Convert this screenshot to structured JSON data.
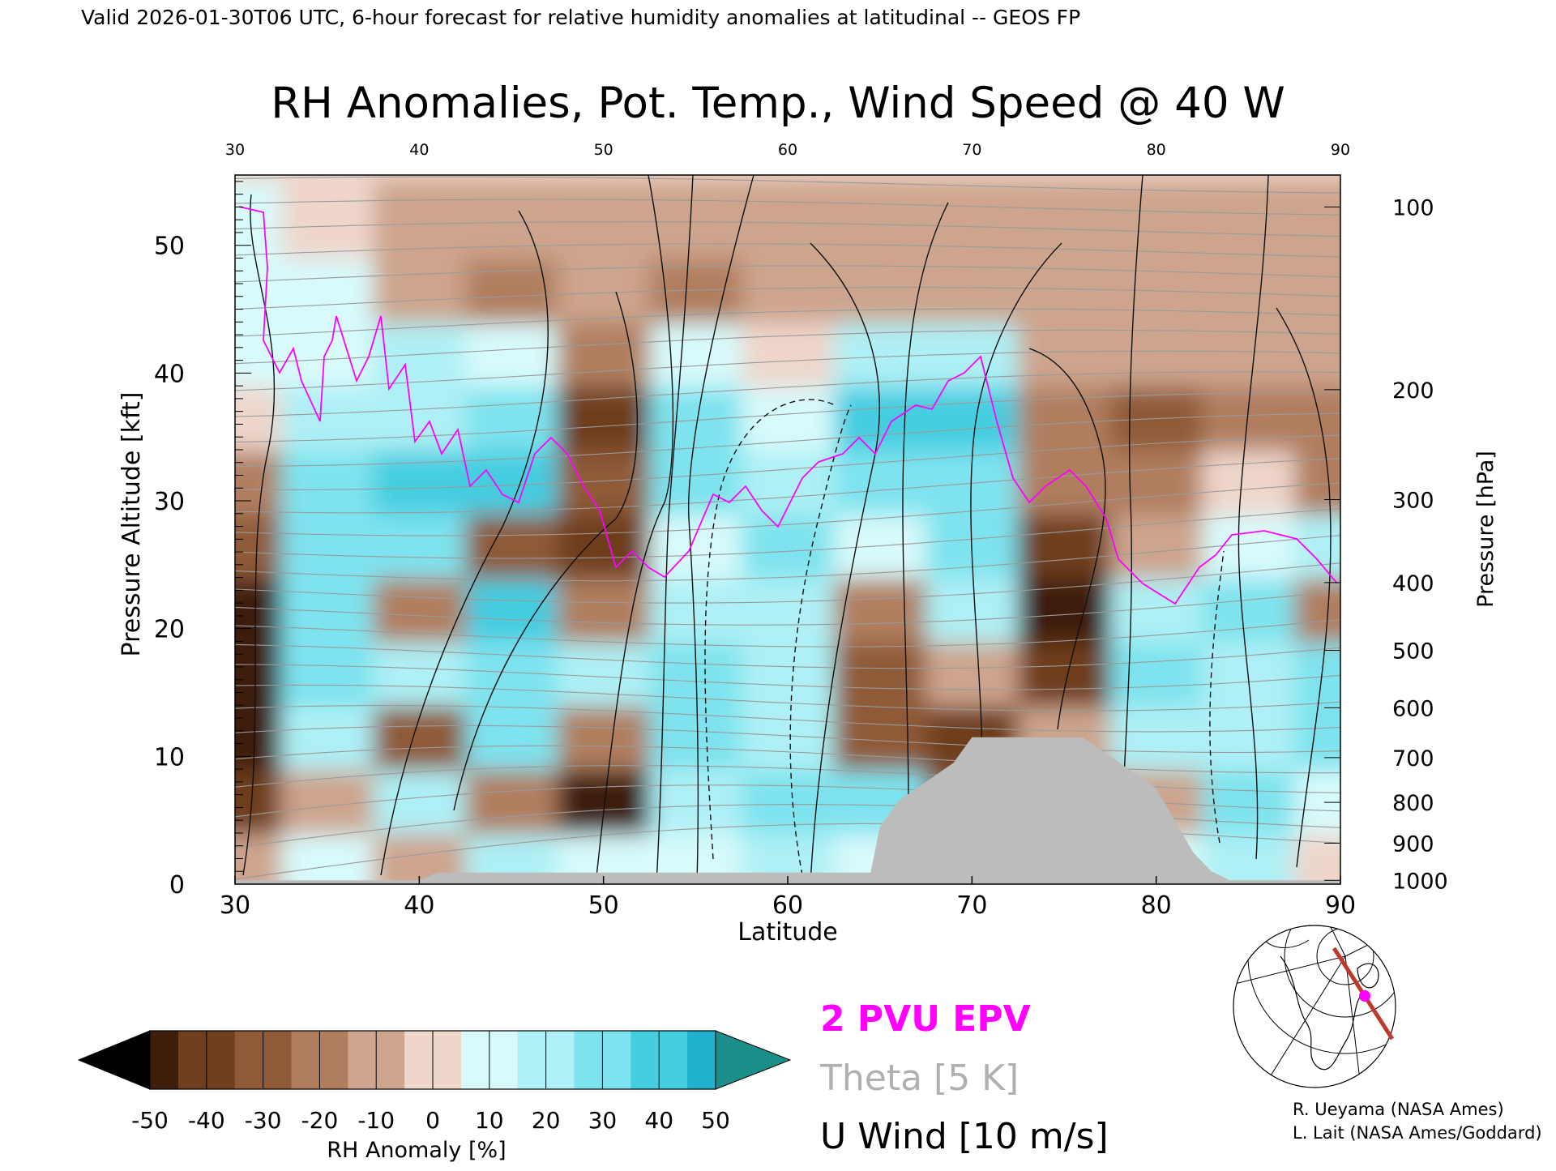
{
  "header": {
    "valid_line": "Valid 2026-01-30T06 UTC, 6-hour forecast for relative humidity anomalies at latitudinal -- GEOS FP"
  },
  "chart_data": {
    "type": "heatmap",
    "title": "RH Anomalies, Pot. Temp., Wind Speed @ 40 W",
    "xlabel": "Latitude",
    "ylabel_left": "Pressure Altitude [kft]",
    "ylabel_right": "Pressure [hPa]",
    "xlim": [
      30,
      90
    ],
    "ylim_kft": [
      0,
      55.5
    ],
    "x_ticks": [
      "30",
      "40",
      "50",
      "60",
      "70",
      "80",
      "90"
    ],
    "x_tick_values": [
      30,
      40,
      50,
      60,
      70,
      80,
      90
    ],
    "y_ticks_left": [
      "0",
      "10",
      "20",
      "30",
      "40",
      "50"
    ],
    "y_tick_values_left": [
      0,
      10,
      20,
      30,
      40,
      50
    ],
    "y_ticks_right": [
      {
        "label": "100",
        "kft": 53.0
      },
      {
        "label": "200",
        "kft": 38.7
      },
      {
        "label": "300",
        "kft": 30.1
      },
      {
        "label": "400",
        "kft": 23.6
      },
      {
        "label": "500",
        "kft": 18.3
      },
      {
        "label": "600",
        "kft": 13.8
      },
      {
        "label": "700",
        "kft": 9.9
      },
      {
        "label": "800",
        "kft": 6.4
      },
      {
        "label": "900",
        "kft": 3.2
      },
      {
        "label": "1000",
        "kft": 0.3
      }
    ],
    "rh_anomaly_grid": {
      "lat": [
        30,
        35,
        40,
        45,
        50,
        55,
        60,
        65,
        70,
        75,
        80,
        85,
        90
      ],
      "kft": [
        2,
        7,
        12,
        17,
        22,
        27,
        32,
        37,
        42,
        47,
        52
      ],
      "values_pct": [
        [
          -10,
          15,
          -10,
          20,
          10,
          15,
          25,
          15,
          20,
          0,
          15,
          25,
          0
        ],
        [
          -40,
          -10,
          25,
          -20,
          -45,
          20,
          35,
          30,
          -30,
          -20,
          -10,
          30,
          10
        ],
        [
          -45,
          25,
          -30,
          30,
          -15,
          30,
          25,
          -30,
          -35,
          -10,
          20,
          25,
          30
        ],
        [
          -50,
          35,
          20,
          35,
          20,
          35,
          20,
          -25,
          -10,
          -40,
          30,
          25,
          35
        ],
        [
          -45,
          30,
          -20,
          40,
          -20,
          20,
          25,
          -15,
          25,
          -45,
          25,
          30,
          -15
        ],
        [
          -30,
          35,
          35,
          -25,
          -35,
          15,
          30,
          10,
          35,
          -40,
          -10,
          10,
          20
        ],
        [
          -15,
          30,
          40,
          40,
          -30,
          30,
          25,
          30,
          30,
          -20,
          -20,
          5,
          -20
        ],
        [
          5,
          25,
          20,
          35,
          -35,
          30,
          15,
          40,
          45,
          -20,
          -25,
          -15,
          -15
        ],
        [
          10,
          15,
          20,
          10,
          -15,
          10,
          5,
          20,
          25,
          -5,
          -10,
          -10,
          -10
        ],
        [
          10,
          10,
          -10,
          -15,
          -5,
          -15,
          -10,
          -10,
          -10,
          -10,
          -5,
          -5,
          -5
        ],
        [
          10,
          5,
          -5,
          -10,
          -10,
          -10,
          -10,
          -10,
          -10,
          -10,
          -5,
          -5,
          -5
        ]
      ]
    },
    "colorbar": {
      "label": "RH Anomaly [%]",
      "ticks": [
        "-50",
        "-40",
        "-30",
        "-20",
        "-10",
        "0",
        "10",
        "20",
        "30",
        "40",
        "50"
      ],
      "colors": [
        "#000000",
        "#3e1e0b",
        "#6e3e1e",
        "#8f5a37",
        "#b07e5e",
        "#cda48d",
        "#eed6cb",
        "#d8fafb",
        "#aef0f5",
        "#7ee3ee",
        "#45cde0",
        "#1eb2cf",
        "#0f8aa6",
        "#1a8e88"
      ]
    },
    "legend": {
      "epv": {
        "label": "2 PVU EPV",
        "color": "#ff00ff"
      },
      "theta": {
        "label": "Theta [5 K]",
        "color": "#b0b0b0"
      },
      "uwind": {
        "label": "U Wind [10 m/s]",
        "color": "#000000"
      }
    },
    "topography_gray": "#bcbcbc",
    "topography": {
      "lat": [
        30,
        40,
        41,
        64.5,
        65,
        66,
        67,
        68,
        69,
        70,
        72,
        74,
        76,
        77,
        78,
        79,
        80,
        81,
        82,
        83,
        84,
        90
      ],
      "kft": [
        0.3,
        0.3,
        0.9,
        0.9,
        4.5,
        6.5,
        7.5,
        8.5,
        9.5,
        11.5,
        11.5,
        11.5,
        11.5,
        10.5,
        9.5,
        8.5,
        7.5,
        5.0,
        2.5,
        1.0,
        0.3,
        0.3
      ]
    }
  },
  "credits": {
    "line1": "R. Ueyama (NASA Ames)",
    "line2": "L. Lait (NASA Ames/Goddard)"
  },
  "inset_map": {
    "section_color": "#c0392b",
    "marker_color": "#ff00ff"
  }
}
